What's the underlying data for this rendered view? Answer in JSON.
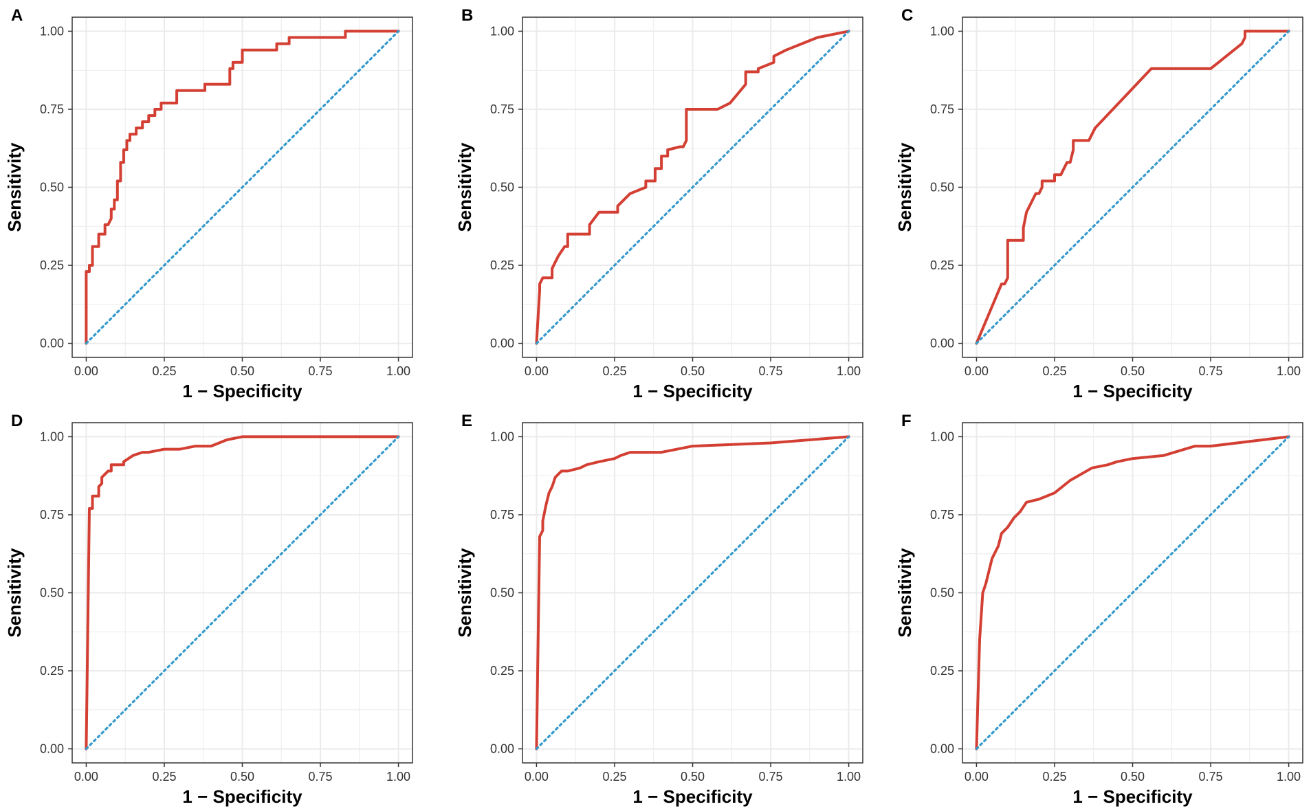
{
  "colors": {
    "roc": "#d33f33",
    "reference": "#3399cc",
    "grid": "#ebebeb",
    "border": "#333333"
  },
  "chart_data": [
    {
      "type": "line",
      "panel": "A",
      "xlabel": "1 − Specificity",
      "ylabel": "Sensitivity",
      "xlim": [
        0,
        1
      ],
      "ylim": [
        0,
        1
      ],
      "xticks": [
        "0.00",
        "0.25",
        "0.50",
        "0.75",
        "1.00"
      ],
      "yticks": [
        "0.00",
        "0.25",
        "0.50",
        "0.75",
        "1.00"
      ],
      "series": [
        {
          "name": "ROC",
          "style": "step",
          "x": [
            0,
            0,
            0.01,
            0.01,
            0.02,
            0.02,
            0.04,
            0.04,
            0.06,
            0.06,
            0.07,
            0.08,
            0.08,
            0.09,
            0.09,
            0.1,
            0.1,
            0.11,
            0.11,
            0.12,
            0.12,
            0.13,
            0.13,
            0.14,
            0.14,
            0.16,
            0.16,
            0.18,
            0.18,
            0.2,
            0.2,
            0.22,
            0.22,
            0.24,
            0.24,
            0.29,
            0.29,
            0.31,
            0.31,
            0.38,
            0.38,
            0.46,
            0.46,
            0.47,
            0.47,
            0.5,
            0.5,
            0.61,
            0.61,
            0.65,
            0.65,
            0.83,
            0.83,
            1.0
          ],
          "y": [
            0,
            0.23,
            0.23,
            0.25,
            0.25,
            0.31,
            0.31,
            0.35,
            0.35,
            0.38,
            0.38,
            0.4,
            0.43,
            0.43,
            0.46,
            0.46,
            0.52,
            0.52,
            0.58,
            0.58,
            0.62,
            0.62,
            0.65,
            0.65,
            0.67,
            0.67,
            0.69,
            0.69,
            0.71,
            0.71,
            0.73,
            0.73,
            0.75,
            0.75,
            0.77,
            0.77,
            0.81,
            0.81,
            0.81,
            0.81,
            0.83,
            0.83,
            0.88,
            0.88,
            0.9,
            0.9,
            0.94,
            0.94,
            0.96,
            0.96,
            0.98,
            0.98,
            1.0,
            1.0
          ]
        },
        {
          "name": "Reference",
          "style": "dotted",
          "x": [
            0,
            1
          ],
          "y": [
            0,
            1
          ]
        }
      ]
    },
    {
      "type": "line",
      "panel": "B",
      "xlabel": "1 − Specificity",
      "ylabel": "Sensitivity",
      "xlim": [
        0,
        1
      ],
      "ylim": [
        0,
        1
      ],
      "xticks": [
        "0.00",
        "0.25",
        "0.50",
        "0.75",
        "1.00"
      ],
      "yticks": [
        "0.00",
        "0.25",
        "0.50",
        "0.75",
        "1.00"
      ],
      "series": [
        {
          "name": "ROC",
          "style": "step",
          "x": [
            0,
            0.01,
            0.01,
            0.02,
            0.05,
            0.05,
            0.07,
            0.09,
            0.1,
            0.1,
            0.17,
            0.17,
            0.2,
            0.2,
            0.26,
            0.26,
            0.3,
            0.3,
            0.35,
            0.35,
            0.38,
            0.38,
            0.4,
            0.4,
            0.42,
            0.42,
            0.46,
            0.47,
            0.48,
            0.48,
            0.58,
            0.62,
            0.67,
            0.67,
            0.71,
            0.71,
            0.76,
            0.76,
            0.8,
            0.85,
            0.9,
            1.0
          ],
          "y": [
            0,
            0.17,
            0.19,
            0.21,
            0.21,
            0.24,
            0.28,
            0.31,
            0.31,
            0.35,
            0.35,
            0.38,
            0.42,
            0.42,
            0.42,
            0.44,
            0.48,
            0.48,
            0.5,
            0.52,
            0.52,
            0.56,
            0.56,
            0.6,
            0.6,
            0.62,
            0.63,
            0.63,
            0.65,
            0.75,
            0.75,
            0.77,
            0.83,
            0.87,
            0.87,
            0.88,
            0.9,
            0.92,
            0.94,
            0.96,
            0.98,
            1.0
          ]
        },
        {
          "name": "Reference",
          "style": "dotted",
          "x": [
            0,
            1
          ],
          "y": [
            0,
            1
          ]
        }
      ]
    },
    {
      "type": "line",
      "panel": "C",
      "xlabel": "1 − Specificity",
      "ylabel": "Sensitivity",
      "xlim": [
        0,
        1
      ],
      "ylim": [
        0,
        1
      ],
      "xticks": [
        "0.00",
        "0.25",
        "0.50",
        "0.75",
        "1.00"
      ],
      "yticks": [
        "0.00",
        "0.25",
        "0.50",
        "0.75",
        "1.00"
      ],
      "series": [
        {
          "name": "ROC",
          "style": "line",
          "x": [
            0,
            0.08,
            0.09,
            0.1,
            0.1,
            0.15,
            0.15,
            0.16,
            0.17,
            0.19,
            0.2,
            0.21,
            0.21,
            0.25,
            0.25,
            0.27,
            0.28,
            0.29,
            0.3,
            0.31,
            0.31,
            0.36,
            0.38,
            0.56,
            0.75,
            0.85,
            0.86,
            0.86,
            1.0
          ],
          "y": [
            0,
            0.19,
            0.19,
            0.21,
            0.33,
            0.33,
            0.37,
            0.42,
            0.44,
            0.48,
            0.48,
            0.5,
            0.52,
            0.52,
            0.54,
            0.54,
            0.56,
            0.58,
            0.58,
            0.62,
            0.65,
            0.65,
            0.69,
            0.88,
            0.88,
            0.96,
            0.98,
            1.0,
            1.0
          ]
        },
        {
          "name": "Reference",
          "style": "dotted",
          "x": [
            0,
            1
          ],
          "y": [
            0,
            1
          ]
        }
      ]
    },
    {
      "type": "line",
      "panel": "D",
      "xlabel": "1 − Specificity",
      "ylabel": "Sensitivity",
      "xlim": [
        0,
        1
      ],
      "ylim": [
        0,
        1
      ],
      "xticks": [
        "0.00",
        "0.25",
        "0.50",
        "0.75",
        "1.00"
      ],
      "yticks": [
        "0.00",
        "0.25",
        "0.50",
        "0.75",
        "1.00"
      ],
      "series": [
        {
          "name": "ROC",
          "style": "line",
          "x": [
            0,
            0.01,
            0.02,
            0.02,
            0.04,
            0.04,
            0.05,
            0.05,
            0.06,
            0.07,
            0.08,
            0.08,
            0.12,
            0.12,
            0.15,
            0.18,
            0.2,
            0.25,
            0.3,
            0.35,
            0.4,
            0.45,
            0.5,
            0.75,
            1.0
          ],
          "y": [
            0,
            0.77,
            0.77,
            0.81,
            0.81,
            0.84,
            0.85,
            0.87,
            0.88,
            0.89,
            0.89,
            0.91,
            0.91,
            0.92,
            0.94,
            0.95,
            0.95,
            0.96,
            0.96,
            0.97,
            0.97,
            0.99,
            1.0,
            1.0,
            1.0
          ]
        },
        {
          "name": "Reference",
          "style": "dotted",
          "x": [
            0,
            1
          ],
          "y": [
            0,
            1
          ]
        }
      ]
    },
    {
      "type": "line",
      "panel": "E",
      "xlabel": "1 − Specificity",
      "ylabel": "Sensitivity",
      "xlim": [
        0,
        1
      ],
      "ylim": [
        0,
        1
      ],
      "xticks": [
        "0.00",
        "0.25",
        "0.50",
        "0.75",
        "1.00"
      ],
      "yticks": [
        "0.00",
        "0.25",
        "0.50",
        "0.75",
        "1.00"
      ],
      "series": [
        {
          "name": "ROC",
          "style": "line",
          "x": [
            0,
            0.01,
            0.02,
            0.02,
            0.03,
            0.04,
            0.05,
            0.06,
            0.07,
            0.08,
            0.1,
            0.14,
            0.16,
            0.2,
            0.25,
            0.27,
            0.3,
            0.35,
            0.4,
            0.45,
            0.5,
            0.75,
            1.0
          ],
          "y": [
            0,
            0.68,
            0.7,
            0.73,
            0.78,
            0.82,
            0.84,
            0.87,
            0.88,
            0.89,
            0.89,
            0.9,
            0.91,
            0.92,
            0.93,
            0.94,
            0.95,
            0.95,
            0.95,
            0.96,
            0.97,
            0.98,
            1.0
          ]
        },
        {
          "name": "Reference",
          "style": "dotted",
          "x": [
            0,
            1
          ],
          "y": [
            0,
            1
          ]
        }
      ]
    },
    {
      "type": "line",
      "panel": "F",
      "xlabel": "1 − Specificity",
      "ylabel": "Sensitivity",
      "xlim": [
        0,
        1
      ],
      "ylim": [
        0,
        1
      ],
      "xticks": [
        "0.00",
        "0.25",
        "0.50",
        "0.75",
        "1.00"
      ],
      "yticks": [
        "0.00",
        "0.25",
        "0.50",
        "0.75",
        "1.00"
      ],
      "series": [
        {
          "name": "ROC",
          "style": "line",
          "x": [
            0,
            0.01,
            0.02,
            0.03,
            0.04,
            0.05,
            0.07,
            0.08,
            0.1,
            0.12,
            0.14,
            0.16,
            0.2,
            0.25,
            0.3,
            0.37,
            0.42,
            0.45,
            0.5,
            0.6,
            0.7,
            0.75,
            1.0
          ],
          "y": [
            0,
            0.35,
            0.5,
            0.53,
            0.57,
            0.61,
            0.65,
            0.69,
            0.71,
            0.74,
            0.76,
            0.79,
            0.8,
            0.82,
            0.86,
            0.9,
            0.91,
            0.92,
            0.93,
            0.94,
            0.97,
            0.97,
            1.0
          ]
        },
        {
          "name": "Reference",
          "style": "dotted",
          "x": [
            0,
            1
          ],
          "y": [
            0,
            1
          ]
        }
      ]
    }
  ]
}
